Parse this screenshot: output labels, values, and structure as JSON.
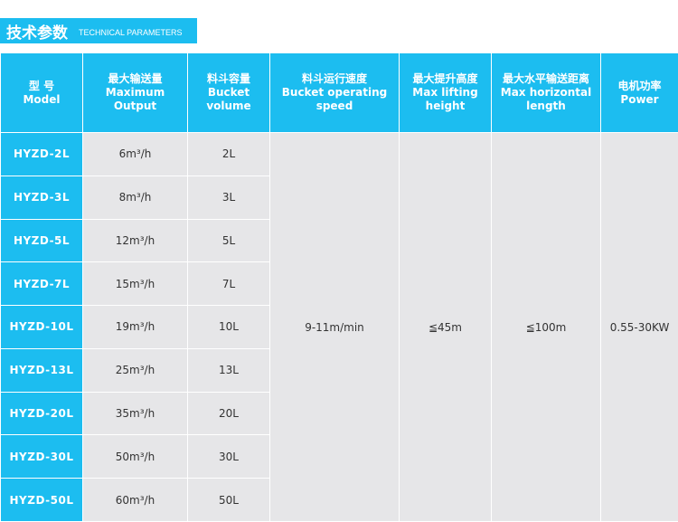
{
  "title": {
    "cn": "技术参数",
    "en": "TECHNICAL PARAMETERS"
  },
  "colors": {
    "accent": "#1cbdf0",
    "cell": "#e6e6e8"
  },
  "headers": [
    {
      "cn": "型 号",
      "en": "Model"
    },
    {
      "cn": "最大输送量",
      "en": "Maximum Output"
    },
    {
      "cn": "料斗容量",
      "en": "Bucket volume"
    },
    {
      "cn": "料斗运行速度",
      "en": "Bucket operating speed"
    },
    {
      "cn": "最大提升高度",
      "en": "Max lifting height"
    },
    {
      "cn": "最大水平输送距离",
      "en": "Max horizontal length"
    },
    {
      "cn": "电机功率",
      "en": "Power"
    }
  ],
  "rows": [
    {
      "model": "HYZD-2L",
      "output": "6m³/h",
      "volume": "2L"
    },
    {
      "model": "HYZD-3L",
      "output": "8m³/h",
      "volume": "3L"
    },
    {
      "model": "HYZD-5L",
      "output": "12m³/h",
      "volume": "5L"
    },
    {
      "model": "HYZD-7L",
      "output": "15m³/h",
      "volume": "7L"
    },
    {
      "model": "HYZD-10L",
      "output": "19m³/h",
      "volume": "10L"
    },
    {
      "model": "HYZD-13L",
      "output": "25m³/h",
      "volume": "13L"
    },
    {
      "model": "HYZD-20L",
      "output": "35m³/h",
      "volume": "20L"
    },
    {
      "model": "HYZD-30L",
      "output": "50m³/h",
      "volume": "30L"
    },
    {
      "model": "HYZD-50L",
      "output": "60m³/h",
      "volume": "50L"
    }
  ],
  "shared": {
    "speed": "9-11m/min",
    "height": "≦45m",
    "length": "≦100m",
    "power": "0.55-30KW"
  }
}
